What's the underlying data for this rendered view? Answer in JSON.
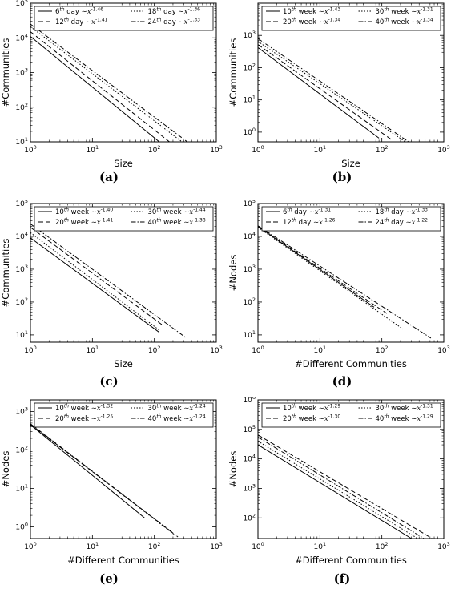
{
  "chart_data": [
    {
      "type": "line",
      "label": "(a)",
      "xlabel": "Size",
      "ylabel": "#Communities",
      "xscale": "log",
      "yscale": "log",
      "xlim": [
        1,
        1000
      ],
      "ylim": [
        10,
        100000
      ],
      "xticks": [
        "10^0",
        "10^1",
        "10^2",
        "10^3"
      ],
      "yticks": [
        "10^1",
        "10^2",
        "10^3",
        "10^4",
        "10^5"
      ],
      "legend": "top-right",
      "series": [
        {
          "sup": "th",
          "prefix": "6",
          "unit": "day",
          "exp": "-1.46",
          "style": "solid",
          "x": [
            1,
            120
          ],
          "y": [
            11000,
            10
          ]
        },
        {
          "sup": "th",
          "prefix": "12",
          "unit": "day",
          "exp": "-1.41",
          "style": "dashed",
          "x": [
            1,
            175
          ],
          "y": [
            15000,
            10
          ]
        },
        {
          "sup": "th",
          "prefix": "18",
          "unit": "day",
          "exp": "-1.36",
          "style": "dotted",
          "x": [
            1,
            280
          ],
          "y": [
            21000,
            10
          ]
        },
        {
          "sup": "th",
          "prefix": "24",
          "unit": "day",
          "exp": "-1.33",
          "style": "dashdot",
          "x": [
            1,
            340
          ],
          "y": [
            25000,
            10
          ]
        }
      ]
    },
    {
      "type": "line",
      "label": "(b)",
      "xlabel": "Size",
      "ylabel": "#Communities",
      "xscale": "log",
      "yscale": "log",
      "xlim": [
        1,
        1000
      ],
      "ylim": [
        0.5,
        10000
      ],
      "xticks": [
        "10^0",
        "10^1",
        "10^2",
        "10^3"
      ],
      "yticks": [
        "10^0",
        "10^1",
        "10^2",
        "10^3"
      ],
      "legend": "top-right",
      "series": [
        {
          "sup": "th",
          "prefix": "10",
          "unit": "week",
          "exp": "-1.43",
          "style": "solid",
          "x": [
            1,
            90
          ],
          "y": [
            420,
            0.65
          ]
        },
        {
          "sup": "th",
          "prefix": "20",
          "unit": "week",
          "exp": "-1.34",
          "style": "dashed",
          "x": [
            1,
            140
          ],
          "y": [
            520,
            0.6
          ]
        },
        {
          "sup": "th",
          "prefix": "30",
          "unit": "week",
          "exp": "-1.31",
          "style": "dotted",
          "x": [
            1,
            240
          ],
          "y": [
            650,
            0.5
          ]
        },
        {
          "sup": "th",
          "prefix": "40",
          "unit": "week",
          "exp": "-1.34",
          "style": "dashdot",
          "x": [
            1,
            270
          ],
          "y": [
            800,
            0.5
          ]
        }
      ]
    },
    {
      "type": "line",
      "label": "(c)",
      "xlabel": "Size",
      "ylabel": "#Communities",
      "xscale": "log",
      "yscale": "log",
      "xlim": [
        1,
        1000
      ],
      "ylim": [
        6,
        100000
      ],
      "xticks": [
        "10^0",
        "10^1",
        "10^2",
        "10^3"
      ],
      "yticks": [
        "10^1",
        "10^2",
        "10^3",
        "10^4",
        "10^5"
      ],
      "legend": "top-right",
      "series": [
        {
          "sup": "th",
          "prefix": "10",
          "unit": "week",
          "exp": "-1.40",
          "style": "solid",
          "x": [
            1,
            120
          ],
          "y": [
            9000,
            12
          ]
        },
        {
          "sup": "th",
          "prefix": "20",
          "unit": "week",
          "exp": "-1.41",
          "style": "dashed",
          "x": [
            1,
            140
          ],
          "y": [
            19000,
            19
          ]
        },
        {
          "sup": "th",
          "prefix": "30",
          "unit": "week",
          "exp": "-1.44",
          "style": "dotted",
          "x": [
            1,
            120
          ],
          "y": [
            13000,
            14
          ]
        },
        {
          "sup": "th",
          "prefix": "40",
          "unit": "week",
          "exp": "-1.38",
          "style": "dashdot",
          "x": [
            1,
            330
          ],
          "y": [
            24000,
            8
          ]
        }
      ]
    },
    {
      "type": "line",
      "label": "(d)",
      "xlabel": "#Different Communities",
      "ylabel": "#Nodes",
      "xscale": "log",
      "yscale": "log",
      "xlim": [
        1,
        1000
      ],
      "ylim": [
        6,
        100000
      ],
      "xticks": [
        "10^0",
        "10^1",
        "10^2",
        "10^3"
      ],
      "yticks": [
        "10^1",
        "10^2",
        "10^3",
        "10^4",
        "10^5"
      ],
      "legend": "top-right",
      "series": [
        {
          "sup": "th",
          "prefix": "6",
          "unit": "day",
          "exp": "-1.31",
          "style": "solid",
          "x": [
            1,
            75
          ],
          "y": [
            20000,
            70
          ]
        },
        {
          "sup": "th",
          "prefix": "12",
          "unit": "day",
          "exp": "-1.26",
          "style": "dashed",
          "x": [
            1,
            120
          ],
          "y": [
            20000,
            45
          ]
        },
        {
          "sup": "th",
          "prefix": "18",
          "unit": "day",
          "exp": "-1.33",
          "style": "dotted",
          "x": [
            1,
            220
          ],
          "y": [
            19000,
            15
          ]
        },
        {
          "sup": "th",
          "prefix": "24",
          "unit": "day",
          "exp": "-1.22",
          "style": "dashdot",
          "x": [
            1,
            620
          ],
          "y": [
            21000,
            8
          ]
        }
      ]
    },
    {
      "type": "line",
      "label": "(e)",
      "xlabel": "#Different Communities",
      "ylabel": "#Nodes",
      "xscale": "log",
      "yscale": "log",
      "xlim": [
        1,
        1000
      ],
      "ylim": [
        0.5,
        2000
      ],
      "xticks": [
        "10^0",
        "10^1",
        "10^2",
        "10^3"
      ],
      "yticks": [
        "10^0",
        "10^1",
        "10^2",
        "10^3"
      ],
      "legend": "top-right",
      "series": [
        {
          "sup": "th",
          "prefix": "10",
          "unit": "week",
          "exp": "-1.32",
          "style": "solid",
          "x": [
            1,
            70
          ],
          "y": [
            450,
            1.7
          ]
        },
        {
          "sup": "th",
          "prefix": "20",
          "unit": "week",
          "exp": "-1.25",
          "style": "dashed",
          "x": [
            1,
            200
          ],
          "y": [
            460,
            0.7
          ]
        },
        {
          "sup": "th",
          "prefix": "30",
          "unit": "week",
          "exp": "-1.24",
          "style": "dotted",
          "x": [
            1,
            220
          ],
          "y": [
            470,
            0.6
          ]
        },
        {
          "sup": "th",
          "prefix": "40",
          "unit": "week",
          "exp": "-1.24",
          "style": "dashdot",
          "x": [
            1,
            240
          ],
          "y": [
            480,
            0.55
          ]
        }
      ]
    },
    {
      "type": "line",
      "label": "(f)",
      "xlabel": "#Different Communities",
      "ylabel": "#Nodes",
      "xscale": "log",
      "yscale": "log",
      "xlim": [
        1,
        1000
      ],
      "ylim": [
        20,
        1000000
      ],
      "xticks": [
        "10^0",
        "10^1",
        "10^2",
        "10^3"
      ],
      "yticks": [
        "10^2",
        "10^3",
        "10^4",
        "10^5",
        "10^6"
      ],
      "legend": "top-right",
      "series": [
        {
          "sup": "th",
          "prefix": "10",
          "unit": "week",
          "exp": "-1.29",
          "style": "solid",
          "x": [
            1,
            300
          ],
          "y": [
            30000,
            20
          ]
        },
        {
          "sup": "th",
          "prefix": "20",
          "unit": "week",
          "exp": "-1.30",
          "style": "dashed",
          "x": [
            1,
            650
          ],
          "y": [
            65000,
            20
          ]
        },
        {
          "sup": "th",
          "prefix": "30",
          "unit": "week",
          "exp": "-1.31",
          "style": "dotted",
          "x": [
            1,
            380
          ],
          "y": [
            40000,
            20
          ]
        },
        {
          "sup": "th",
          "prefix": "40",
          "unit": "week",
          "exp": "-1.29",
          "style": "dashdot",
          "x": [
            1,
            480
          ],
          "y": [
            55000,
            20
          ]
        }
      ]
    }
  ]
}
